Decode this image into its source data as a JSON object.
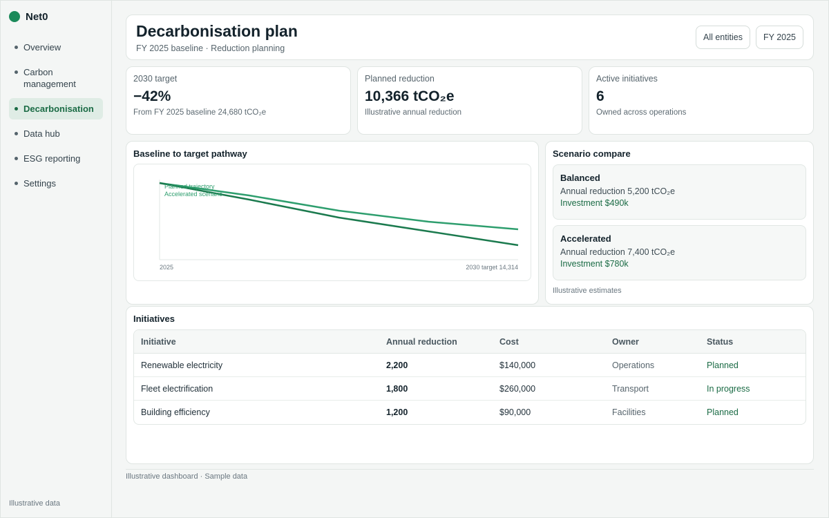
{
  "brand": {
    "name": "Net0"
  },
  "sidebar": {
    "items": [
      {
        "label": "Overview",
        "active": false
      },
      {
        "label": "Carbon management",
        "active": false
      },
      {
        "label": "Decarbonisation",
        "active": true
      },
      {
        "label": "Data hub",
        "active": false
      },
      {
        "label": "ESG reporting",
        "active": false
      },
      {
        "label": "Settings",
        "active": false
      }
    ],
    "footer": "Illustrative data"
  },
  "header": {
    "title": "Decarbonisation plan",
    "subtitle": "FY 2025 baseline · Reduction planning",
    "entities_button": "All entities",
    "year_button": "FY 2025"
  },
  "kpis": [
    {
      "label": "2030 target",
      "value": "−42%",
      "note": "From FY 2025 baseline 24,680 tCO₂e"
    },
    {
      "label": "Planned reduction",
      "value": "10,366 tCO₂e",
      "note": "Illustrative annual reduction"
    },
    {
      "label": "Active initiatives",
      "value": "6",
      "note": "Owned across operations"
    }
  ],
  "pathway": {
    "title": "Baseline to target pathway",
    "x_start_label": "2025",
    "x_end_label": "2030 target 14,314",
    "series": [
      {
        "name": "Planned trajectory",
        "color": "#2e9e6e",
        "values": [
          1.0,
          0.82,
          0.6,
          0.44,
          0.33
        ]
      },
      {
        "name": "Accelerated scenario",
        "color": "#1b7a4e",
        "values": [
          1.0,
          0.76,
          0.5,
          0.3,
          0.1
        ]
      }
    ]
  },
  "scenarios": {
    "title": "Scenario compare",
    "items": [
      {
        "name": "Balanced",
        "reduction": "Annual reduction 5,200 tCO₂e",
        "investment": "Investment $490k"
      },
      {
        "name": "Accelerated",
        "reduction": "Annual reduction 7,400 tCO₂e",
        "investment": "Investment $780k"
      }
    ],
    "footer": "Illustrative estimates"
  },
  "initiatives": {
    "title": "Initiatives",
    "columns": [
      "Initiative",
      "Annual reduction",
      "Cost",
      "Owner",
      "Status"
    ],
    "rows": [
      {
        "initiative": "Renewable electricity",
        "reduction": "2,200",
        "cost": "$140,000",
        "owner": "Operations",
        "status": "Planned"
      },
      {
        "initiative": "Fleet electrification",
        "reduction": "1,800",
        "cost": "$260,000",
        "owner": "Transport",
        "status": "In progress"
      },
      {
        "initiative": "Building efficiency",
        "reduction": "1,200",
        "cost": "$90,000",
        "owner": "Facilities",
        "status": "Planned"
      }
    ]
  },
  "footer": "Illustrative dashboard · Sample data"
}
